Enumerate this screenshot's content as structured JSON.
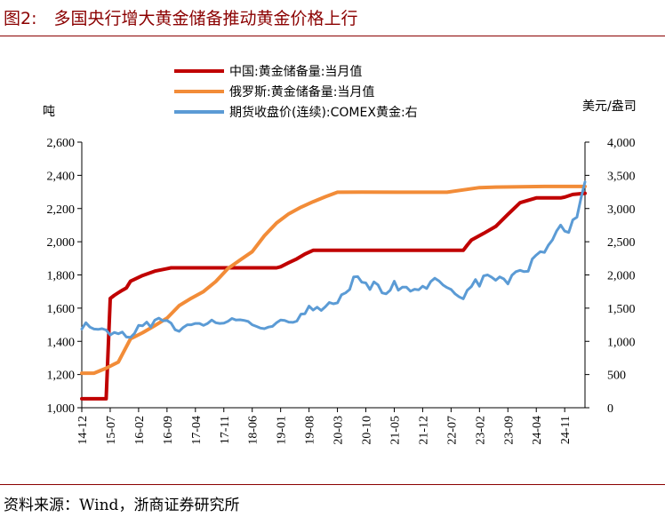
{
  "figure": {
    "title": "图2:　多国央行增大黄金储备推动黄金价格上行",
    "source": "资料来源：Wind，浙商证券研究所"
  },
  "colors": {
    "china": "#c00000",
    "russia": "#f28c38",
    "gold": "#5b9bd5",
    "rule": "#8b0000"
  },
  "chart_data": {
    "type": "line",
    "title": "",
    "left_axis": {
      "unit_label": "吨",
      "ylim": [
        1000,
        2600
      ],
      "ticks": [
        1000,
        1200,
        1400,
        1600,
        1800,
        2000,
        2200,
        2400,
        2600
      ],
      "tick_labels": [
        "1,000",
        "1,200",
        "1,400",
        "1,600",
        "1,800",
        "2,000",
        "2,200",
        "2,400",
        "2,600"
      ]
    },
    "right_axis": {
      "unit_label": "美元/盎司",
      "ylim": [
        0,
        4000
      ],
      "ticks": [
        0,
        500,
        1000,
        1500,
        2000,
        2500,
        3000,
        3500,
        4000
      ],
      "tick_labels": [
        "0",
        "500",
        "1,000",
        "1,500",
        "2,000",
        "2,500",
        "3,000",
        "3,500",
        "4,000"
      ]
    },
    "x_axis": {
      "range": [
        "2014-12",
        "2025-04"
      ],
      "tick_labels": [
        "14-12",
        "15-07",
        "16-02",
        "16-09",
        "17-04",
        "17-11",
        "18-06",
        "19-01",
        "19-08",
        "20-03",
        "20-10",
        "21-05",
        "21-12",
        "22-07",
        "23-02",
        "23-09",
        "24-04",
        "24-11"
      ]
    },
    "legend_position": "top",
    "grid": false,
    "series": [
      {
        "name": "中国:黄金储备量:当月值",
        "axis": "left",
        "color_key": "china",
        "points": [
          [
            "2014-12",
            1054
          ],
          [
            "2015-06",
            1054
          ],
          [
            "2015-07",
            1658
          ],
          [
            "2015-08",
            1677
          ],
          [
            "2015-09",
            1693
          ],
          [
            "2015-10",
            1708
          ],
          [
            "2015-11",
            1722
          ],
          [
            "2015-12",
            1762
          ],
          [
            "2016-03",
            1797
          ],
          [
            "2016-06",
            1823
          ],
          [
            "2016-09",
            1838
          ],
          [
            "2016-10",
            1843
          ],
          [
            "2017-06",
            1843
          ],
          [
            "2018-06",
            1843
          ],
          [
            "2018-12",
            1843
          ],
          [
            "2019-01",
            1849
          ],
          [
            "2019-03",
            1874
          ],
          [
            "2019-05",
            1897
          ],
          [
            "2019-07",
            1926
          ],
          [
            "2019-09",
            1948
          ],
          [
            "2019-10",
            1948
          ],
          [
            "2020-06",
            1948
          ],
          [
            "2021-06",
            1948
          ],
          [
            "2022-06",
            1948
          ],
          [
            "2022-10",
            1948
          ],
          [
            "2022-11",
            1980
          ],
          [
            "2022-12",
            2010
          ],
          [
            "2023-03",
            2050
          ],
          [
            "2023-06",
            2092
          ],
          [
            "2023-09",
            2165
          ],
          [
            "2023-12",
            2235
          ],
          [
            "2024-04",
            2264
          ],
          [
            "2024-10",
            2264
          ],
          [
            "2024-11",
            2269
          ],
          [
            "2025-01",
            2285
          ],
          [
            "2025-04",
            2292
          ]
        ]
      },
      {
        "name": "俄罗斯:黄金储备量:当月值",
        "axis": "left",
        "color_key": "russia",
        "points": [
          [
            "2014-12",
            1208
          ],
          [
            "2015-03",
            1208
          ],
          [
            "2015-06",
            1238
          ],
          [
            "2015-09",
            1275
          ],
          [
            "2015-12",
            1415
          ],
          [
            "2016-03",
            1452
          ],
          [
            "2016-06",
            1495
          ],
          [
            "2016-09",
            1540
          ],
          [
            "2016-12",
            1615
          ],
          [
            "2017-03",
            1660
          ],
          [
            "2017-06",
            1700
          ],
          [
            "2017-09",
            1760
          ],
          [
            "2017-12",
            1838
          ],
          [
            "2018-03",
            1890
          ],
          [
            "2018-06",
            1940
          ],
          [
            "2018-09",
            2036
          ],
          [
            "2018-12",
            2113
          ],
          [
            "2019-03",
            2168
          ],
          [
            "2019-06",
            2208
          ],
          [
            "2019-09",
            2241
          ],
          [
            "2019-12",
            2271
          ],
          [
            "2020-03",
            2298
          ],
          [
            "2020-09",
            2299
          ],
          [
            "2021-06",
            2298
          ],
          [
            "2022-06",
            2298
          ],
          [
            "2023-02",
            2326
          ],
          [
            "2023-06",
            2329
          ],
          [
            "2024-06",
            2333
          ],
          [
            "2025-04",
            2333
          ]
        ]
      },
      {
        "name": "期货收盘价(连续):COMEX黄金:右",
        "axis": "right",
        "color_key": "gold",
        "points": [
          [
            "2014-12",
            1185
          ],
          [
            "2015-01",
            1280
          ],
          [
            "2015-02",
            1215
          ],
          [
            "2015-03",
            1185
          ],
          [
            "2015-04",
            1180
          ],
          [
            "2015-05",
            1190
          ],
          [
            "2015-06",
            1170
          ],
          [
            "2015-07",
            1095
          ],
          [
            "2015-08",
            1135
          ],
          [
            "2015-09",
            1115
          ],
          [
            "2015-10",
            1140
          ],
          [
            "2015-11",
            1065
          ],
          [
            "2015-12",
            1060
          ],
          [
            "2016-01",
            1120
          ],
          [
            "2016-02",
            1240
          ],
          [
            "2016-03",
            1235
          ],
          [
            "2016-04",
            1290
          ],
          [
            "2016-05",
            1215
          ],
          [
            "2016-06",
            1320
          ],
          [
            "2016-07",
            1350
          ],
          [
            "2016-08",
            1310
          ],
          [
            "2016-09",
            1315
          ],
          [
            "2016-10",
            1275
          ],
          [
            "2016-11",
            1175
          ],
          [
            "2016-12",
            1150
          ],
          [
            "2017-01",
            1210
          ],
          [
            "2017-02",
            1250
          ],
          [
            "2017-03",
            1250
          ],
          [
            "2017-04",
            1270
          ],
          [
            "2017-05",
            1270
          ],
          [
            "2017-06",
            1240
          ],
          [
            "2017-07",
            1270
          ],
          [
            "2017-08",
            1320
          ],
          [
            "2017-09",
            1280
          ],
          [
            "2017-10",
            1270
          ],
          [
            "2017-11",
            1275
          ],
          [
            "2017-12",
            1300
          ],
          [
            "2018-01",
            1345
          ],
          [
            "2018-02",
            1320
          ],
          [
            "2018-03",
            1325
          ],
          [
            "2018-04",
            1315
          ],
          [
            "2018-05",
            1300
          ],
          [
            "2018-06",
            1250
          ],
          [
            "2018-07",
            1225
          ],
          [
            "2018-08",
            1200
          ],
          [
            "2018-09",
            1190
          ],
          [
            "2018-10",
            1215
          ],
          [
            "2018-11",
            1225
          ],
          [
            "2018-12",
            1280
          ],
          [
            "2019-01",
            1320
          ],
          [
            "2019-02",
            1315
          ],
          [
            "2019-03",
            1290
          ],
          [
            "2019-04",
            1285
          ],
          [
            "2019-05",
            1305
          ],
          [
            "2019-06",
            1410
          ],
          [
            "2019-07",
            1415
          ],
          [
            "2019-08",
            1530
          ],
          [
            "2019-09",
            1470
          ],
          [
            "2019-10",
            1515
          ],
          [
            "2019-11",
            1465
          ],
          [
            "2019-12",
            1520
          ],
          [
            "2020-01",
            1585
          ],
          [
            "2020-02",
            1565
          ],
          [
            "2020-03",
            1580
          ],
          [
            "2020-04",
            1700
          ],
          [
            "2020-05",
            1730
          ],
          [
            "2020-06",
            1780
          ],
          [
            "2020-07",
            1970
          ],
          [
            "2020-08",
            1975
          ],
          [
            "2020-09",
            1890
          ],
          [
            "2020-10",
            1880
          ],
          [
            "2020-11",
            1780
          ],
          [
            "2020-12",
            1895
          ],
          [
            "2021-01",
            1850
          ],
          [
            "2021-02",
            1730
          ],
          [
            "2021-03",
            1715
          ],
          [
            "2021-04",
            1770
          ],
          [
            "2021-05",
            1905
          ],
          [
            "2021-06",
            1770
          ],
          [
            "2021-07",
            1815
          ],
          [
            "2021-08",
            1815
          ],
          [
            "2021-09",
            1755
          ],
          [
            "2021-10",
            1785
          ],
          [
            "2021-11",
            1775
          ],
          [
            "2021-12",
            1830
          ],
          [
            "2022-01",
            1795
          ],
          [
            "2022-02",
            1900
          ],
          [
            "2022-03",
            1950
          ],
          [
            "2022-04",
            1910
          ],
          [
            "2022-05",
            1850
          ],
          [
            "2022-06",
            1810
          ],
          [
            "2022-07",
            1780
          ],
          [
            "2022-08",
            1715
          ],
          [
            "2022-09",
            1670
          ],
          [
            "2022-10",
            1640
          ],
          [
            "2022-11",
            1770
          ],
          [
            "2022-12",
            1825
          ],
          [
            "2023-01",
            1930
          ],
          [
            "2023-02",
            1830
          ],
          [
            "2023-03",
            1985
          ],
          [
            "2023-04",
            2000
          ],
          [
            "2023-05",
            1965
          ],
          [
            "2023-06",
            1920
          ],
          [
            "2023-07",
            1970
          ],
          [
            "2023-08",
            1940
          ],
          [
            "2023-09",
            1865
          ],
          [
            "2023-10",
            1995
          ],
          [
            "2023-11",
            2050
          ],
          [
            "2023-12",
            2070
          ],
          [
            "2024-01",
            2050
          ],
          [
            "2024-02",
            2055
          ],
          [
            "2024-03",
            2240
          ],
          [
            "2024-04",
            2300
          ],
          [
            "2024-05",
            2350
          ],
          [
            "2024-06",
            2340
          ],
          [
            "2024-07",
            2450
          ],
          [
            "2024-08",
            2530
          ],
          [
            "2024-09",
            2660
          ],
          [
            "2024-10",
            2750
          ],
          [
            "2024-11",
            2660
          ],
          [
            "2024-12",
            2640
          ],
          [
            "2025-01",
            2830
          ],
          [
            "2025-02",
            2870
          ],
          [
            "2025-03",
            3150
          ],
          [
            "2025-04",
            3400
          ]
        ]
      }
    ]
  }
}
